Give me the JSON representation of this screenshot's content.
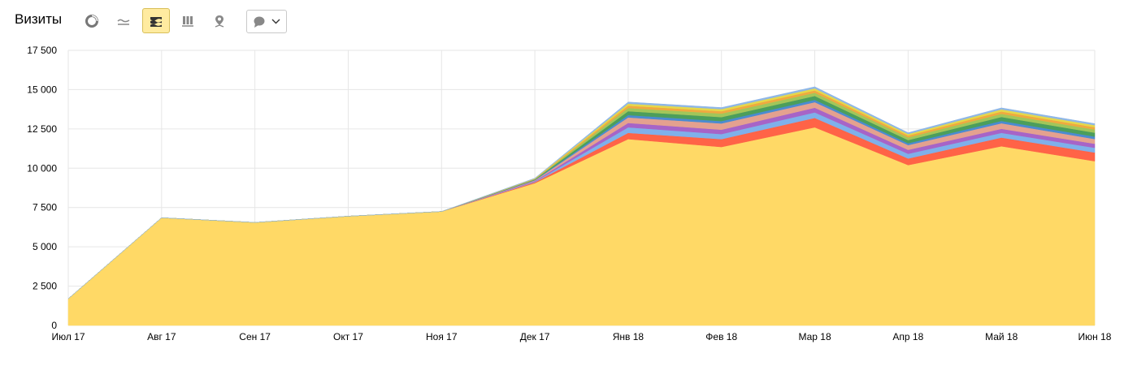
{
  "header": {
    "title": "Визиты",
    "buttons": [
      {
        "icon": "pie-chart-icon"
      },
      {
        "icon": "line-chart-icon"
      },
      {
        "icon": "stacked-area-chart-icon",
        "active": true
      },
      {
        "icon": "bar-chart-icon"
      },
      {
        "icon": "map-pin-icon"
      }
    ],
    "dropdown": {
      "icon": "speech-bubble-icon"
    }
  },
  "chart_data": {
    "type": "area",
    "stacked": true,
    "title": "",
    "xlabel": "",
    "ylabel": "",
    "categories": [
      "Июл 17",
      "Авг 17",
      "Сен 17",
      "Окт 17",
      "Ноя 17",
      "Дек 17",
      "Янв 18",
      "Фев 18",
      "Мар 18",
      "Апр 18",
      "Май 18",
      "Июн 18"
    ],
    "ylim": [
      0,
      17500
    ],
    "yticks": [
      0,
      2500,
      5000,
      7500,
      10000,
      12500,
      15000,
      17500
    ],
    "ytick_labels": [
      "0",
      "2 500",
      "5 000",
      "7 500",
      "10 000",
      "12 500",
      "15 000",
      "17 500"
    ],
    "grid": true,
    "series": [
      {
        "color": "#ffd966",
        "values": [
          1700,
          6850,
          6550,
          6950,
          7250,
          9050,
          11850,
          11350,
          12600,
          10200,
          11400,
          10450
        ]
      },
      {
        "color": "#ff6347",
        "values": [
          0,
          0,
          0,
          0,
          0,
          60,
          400,
          500,
          600,
          420,
          550,
          550
        ]
      },
      {
        "color": "#7fb0ea",
        "values": [
          0,
          0,
          0,
          0,
          0,
          40,
          350,
          320,
          350,
          300,
          300,
          300
        ]
      },
      {
        "color": "#a764c7",
        "values": [
          0,
          0,
          0,
          0,
          0,
          40,
          280,
          280,
          300,
          250,
          260,
          260
        ]
      },
      {
        "color": "#e4a18f",
        "values": [
          0,
          0,
          0,
          0,
          0,
          40,
          350,
          400,
          350,
          300,
          350,
          300
        ]
      },
      {
        "color": "#4a8bd1",
        "values": [
          0,
          0,
          0,
          0,
          0,
          25,
          150,
          150,
          150,
          120,
          150,
          150
        ]
      },
      {
        "color": "#4c9e5b",
        "values": [
          0,
          0,
          0,
          0,
          0,
          30,
          250,
          250,
          250,
          200,
          250,
          250
        ]
      },
      {
        "color": "#a2c65a",
        "values": [
          0,
          0,
          0,
          0,
          0,
          25,
          200,
          230,
          200,
          170,
          200,
          200
        ]
      },
      {
        "color": "#f0a940",
        "values": [
          0,
          0,
          0,
          0,
          0,
          20,
          150,
          150,
          150,
          120,
          150,
          150
        ]
      },
      {
        "color": "#e6d84a",
        "values": [
          0,
          0,
          0,
          0,
          0,
          20,
          130,
          130,
          130,
          100,
          130,
          130
        ]
      },
      {
        "color": "#8fb7e6",
        "values": [
          0,
          0,
          0,
          0,
          0,
          20,
          100,
          100,
          100,
          80,
          100,
          100
        ]
      }
    ]
  }
}
